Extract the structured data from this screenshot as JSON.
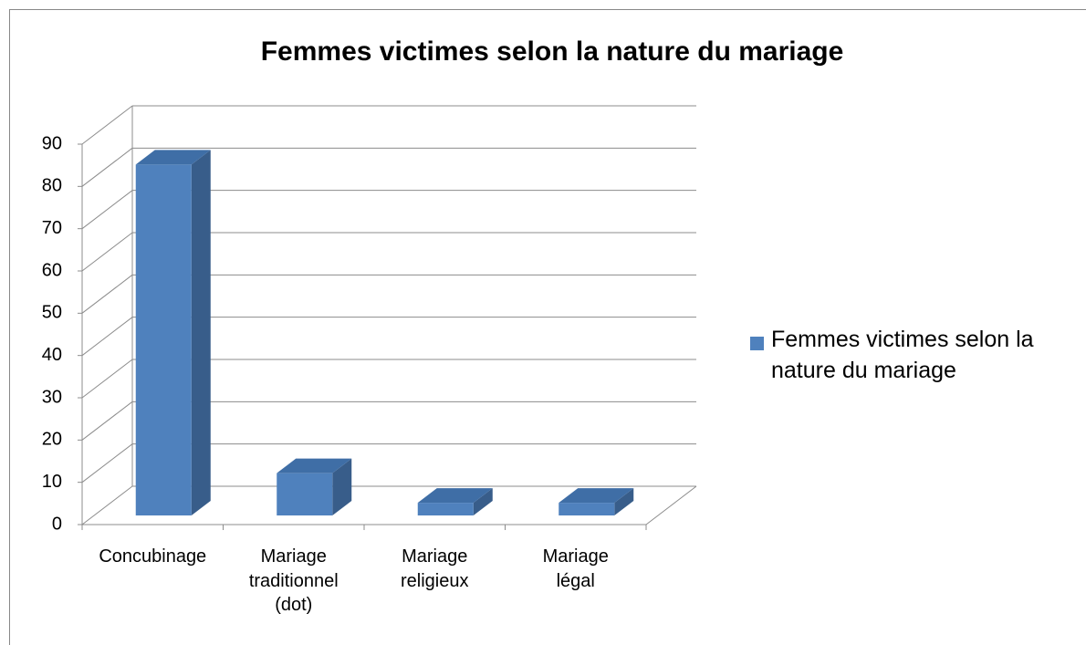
{
  "chart_data": {
    "type": "bar3d",
    "title": "Femmes victimes selon la nature du mariage",
    "categories": [
      "Concubinage",
      "Mariage traditionnel (dot)",
      "Mariage religieux",
      "Mariage légal"
    ],
    "series": [
      {
        "name": "Femmes victimes selon la nature du mariage",
        "color": "#4f81bd",
        "values": [
          83,
          10,
          3,
          3
        ]
      }
    ],
    "ylim": [
      0,
      90
    ],
    "yticks": [
      0,
      10,
      20,
      30,
      40,
      50,
      60,
      70,
      80,
      90
    ],
    "grid": true,
    "legend": "right"
  }
}
